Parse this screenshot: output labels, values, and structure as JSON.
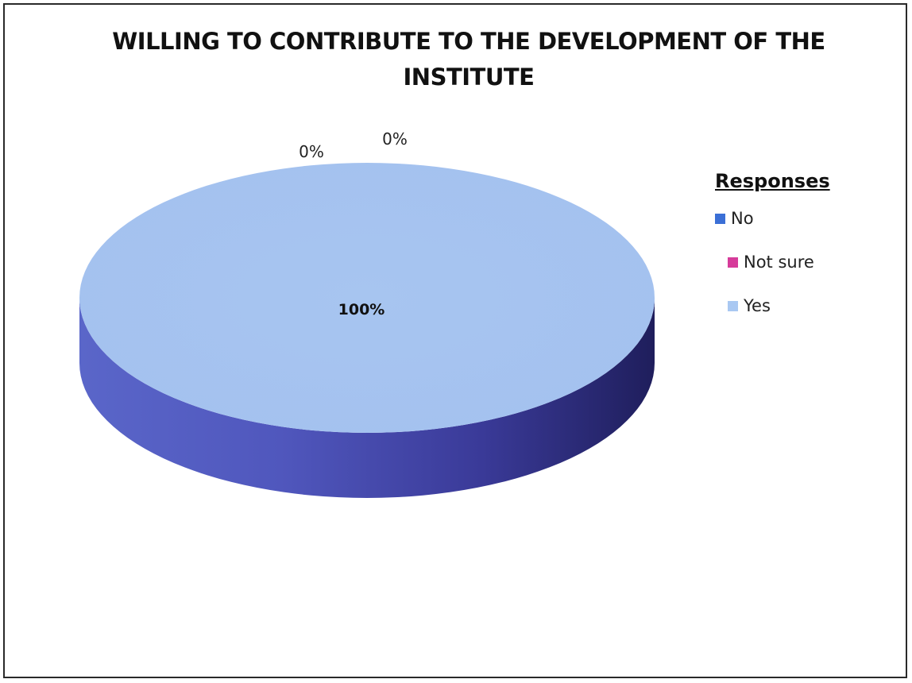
{
  "chart_data": {
    "type": "pie",
    "style": "3d",
    "title": "WILLING TO CONTRIBUTE TO THE DEVELOPMENT OF THE INSTITUTE",
    "legend_title": "Responses",
    "legend_position": "right",
    "slices": [
      {
        "label": "No",
        "value": 0,
        "percent_label": "0%",
        "color": "#3b6fd6"
      },
      {
        "label": "Not sure",
        "value": 0,
        "percent_label": "0%",
        "color": "#d63b9a"
      },
      {
        "label": "Yes",
        "value": 100,
        "percent_label": "100%",
        "color": "#a9c8f2"
      }
    ]
  }
}
